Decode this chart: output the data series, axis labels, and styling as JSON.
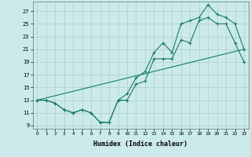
{
  "xlabel": "Humidex (Indice chaleur)",
  "bg_color": "#cceaea",
  "grid_color": "#aacfcf",
  "line_color": "#1a7a6a",
  "xlim": [
    -0.5,
    23.5
  ],
  "ylim": [
    8.5,
    28.5
  ],
  "yticks": [
    9,
    11,
    13,
    15,
    17,
    19,
    21,
    23,
    25,
    27
  ],
  "xticks": [
    0,
    1,
    2,
    3,
    4,
    5,
    6,
    7,
    8,
    9,
    10,
    11,
    12,
    13,
    14,
    15,
    16,
    17,
    18,
    19,
    20,
    21,
    22,
    23
  ],
  "line1_x": [
    0,
    1,
    2,
    3,
    4,
    5,
    6,
    7,
    8,
    9,
    10,
    11,
    12,
    13,
    14,
    15,
    16,
    17,
    18,
    19,
    20,
    21,
    22,
    23
  ],
  "line1_y": [
    13,
    13,
    12.5,
    11.5,
    11,
    11.5,
    11,
    9.5,
    9.5,
    13,
    13,
    15.5,
    16,
    19.5,
    19.5,
    19.5,
    22.5,
    22,
    25.5,
    26,
    25,
    25,
    22,
    19
  ],
  "line2_x": [
    0,
    1,
    2,
    3,
    4,
    5,
    6,
    7,
    8,
    9,
    10,
    11,
    12,
    13,
    14,
    15,
    16,
    17,
    18,
    19,
    20,
    21,
    22,
    23
  ],
  "line2_y": [
    13,
    13,
    12.5,
    11.5,
    11,
    11.5,
    11,
    9.5,
    9.5,
    13,
    14,
    16.5,
    17.5,
    20.5,
    22,
    20.5,
    25,
    25.5,
    26,
    28,
    26.5,
    26,
    25,
    21
  ],
  "line3_x": [
    0,
    23
  ],
  "line3_y": [
    13,
    21
  ]
}
